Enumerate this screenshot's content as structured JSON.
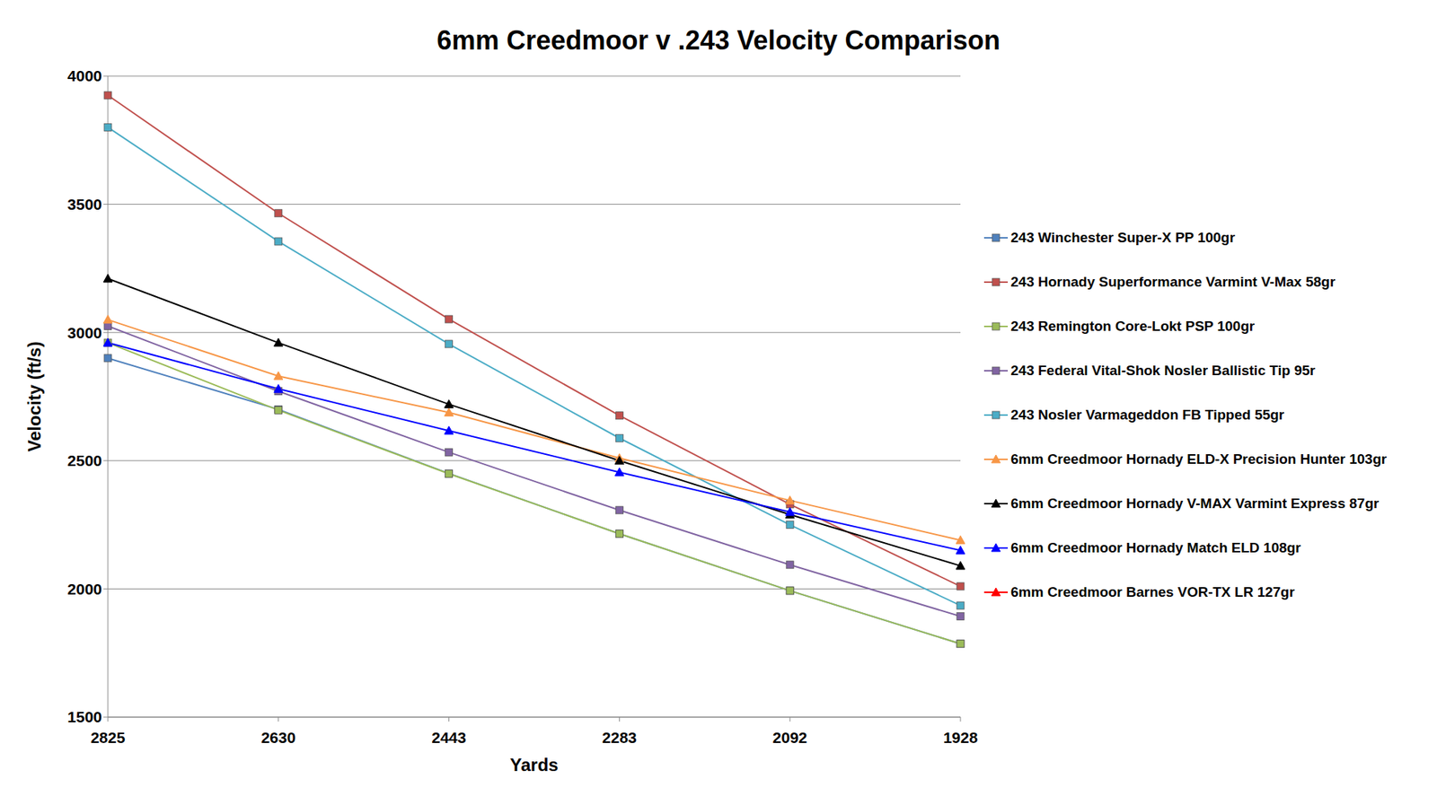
{
  "chart_data": {
    "type": "line",
    "title": "6mm Creedmoor v .243 Velocity Comparison",
    "x_label": "Yards",
    "y_label": "Velocity (ft/s)",
    "categories": [
      "2825",
      "2630",
      "2443",
      "2283",
      "2092",
      "1928"
    ],
    "ylim": [
      1500,
      4000
    ],
    "yticks": [
      1500,
      2000,
      2500,
      3000,
      3500,
      4000
    ],
    "grid": true,
    "legend": "right",
    "series": [
      {
        "name": "243 Winchester Super-X PP 100gr",
        "color": "#4f81bd",
        "marker": "square",
        "values": [
          2900,
          2700,
          2450,
          2215,
          1993,
          1786
        ]
      },
      {
        "name": "243 Hornady Superformance Varmint V-Max 58gr",
        "color": "#c0504d",
        "marker": "square",
        "values": [
          3925,
          3465,
          3052,
          2676,
          2330,
          2010
        ]
      },
      {
        "name": "243 Remington Core-Lokt PSP 100gr",
        "color": "#9bbb59",
        "marker": "square",
        "values": [
          2960,
          2697,
          2449,
          2215,
          1993,
          1786
        ]
      },
      {
        "name": "243 Federal Vital-Shok Nosler Ballistic Tip 95r",
        "color": "#8064a2",
        "marker": "square",
        "values": [
          3025,
          2771,
          2533,
          2307,
          2094,
          1893
        ]
      },
      {
        "name": "243 Nosler Varmageddon FB Tipped 55gr",
        "color": "#4bacc6",
        "marker": "square",
        "values": [
          3800,
          3355,
          2955,
          2588,
          2250,
          1935
        ]
      },
      {
        "name": "6mm Creedmoor Hornady ELD-X Precision Hunter 103gr",
        "color": "#f79646",
        "marker": "triangle",
        "values": [
          3050,
          2830,
          2688,
          2510,
          2345,
          2190
        ]
      },
      {
        "name": "6mm Creedmoor Hornady V-MAX Varmint Express 87gr",
        "color": "#000000",
        "marker": "triangle",
        "values": [
          3210,
          2960,
          2720,
          2500,
          2290,
          2090
        ]
      },
      {
        "name": "6mm Creedmoor Hornady Match ELD 108gr",
        "color": "#0000ff",
        "marker": "triangle",
        "values": [
          2960,
          2780,
          2617,
          2455,
          2300,
          2150
        ]
      },
      {
        "name": "6mm Creedmoor Barnes VOR-TX LR 127gr",
        "color": "#ff0000",
        "marker": "triangle",
        "values": [
          null,
          null,
          null,
          null,
          null,
          null
        ]
      }
    ]
  }
}
